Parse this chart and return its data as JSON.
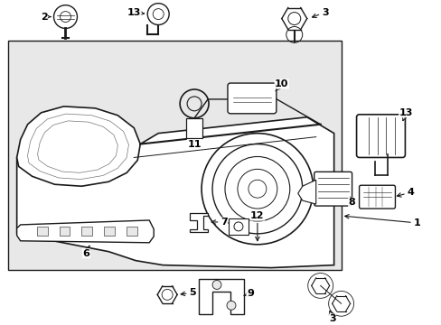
{
  "figsize": [
    4.89,
    3.6
  ],
  "dpi": 100,
  "bg": "#e8e8e8",
  "lc": "#1a1a1a",
  "white": "#ffffff"
}
